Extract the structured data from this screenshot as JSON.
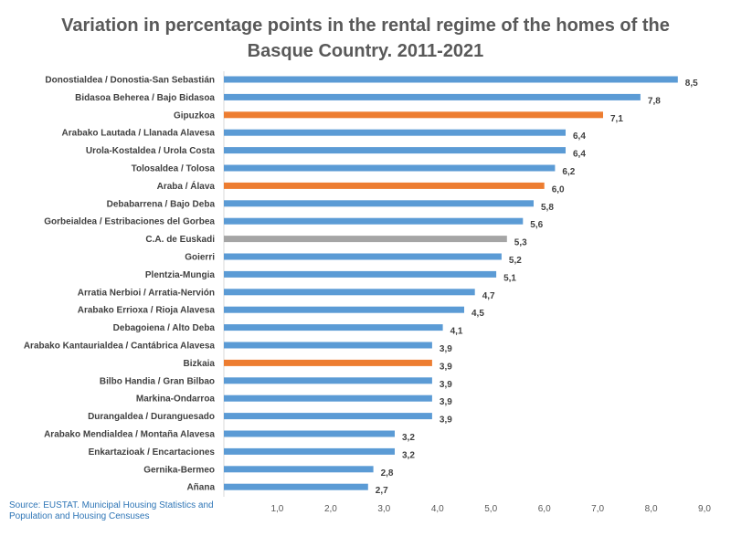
{
  "chart_data": {
    "type": "bar",
    "orientation": "horizontal",
    "title": "Variation in percentage points in the rental regime of the homes of the Basque Country. 2011-2021",
    "categories": [
      "Donostialdea / Donostia-San Sebastián",
      "Bidasoa Beherea / Bajo Bidasoa",
      "Gipuzkoa",
      "Arabako Lautada / Llanada Alavesa",
      "Urola-Kostaldea / Urola Costa",
      "Tolosaldea / Tolosa",
      "Araba / Álava",
      "Debabarrena / Bajo Deba",
      "Gorbeialdea / Estribaciones del Gorbea",
      "C.A. de Euskadi",
      "Goierri",
      "Plentzia-Mungia",
      "Arratia Nerbioi / Arratia-Nervión",
      "Arabako Errioxa / Rioja Alavesa",
      "Debagoiena / Alto Deba",
      "Arabako Kantaurialdea / Cantábrica Alavesa",
      "Bizkaia",
      "Bilbo Handia / Gran Bilbao",
      "Markina-Ondarroa",
      "Durangaldea / Duranguesado",
      "Arabako Mendialdea / Montaña Alavesa",
      "Enkartazioak / Encartaciones",
      "Gernika-Bermeo",
      "Añana"
    ],
    "values": [
      8.5,
      7.8,
      7.1,
      6.4,
      6.4,
      6.2,
      6.0,
      5.8,
      5.6,
      5.3,
      5.2,
      5.1,
      4.7,
      4.5,
      4.1,
      3.9,
      3.9,
      3.9,
      3.9,
      3.9,
      3.2,
      3.2,
      2.8,
      2.7
    ],
    "value_labels": [
      "8,5",
      "7,8",
      "7,1",
      "6,4",
      "6,4",
      "6,2",
      "6,0",
      "5,8",
      "5,6",
      "5,3",
      "5,2",
      "5,1",
      "4,7",
      "4,5",
      "4,1",
      "3,9",
      "3,9",
      "3,9",
      "3,9",
      "3,9",
      "3,2",
      "3,2",
      "2,8",
      "2,7"
    ],
    "bar_kind": [
      "comarca",
      "comarca",
      "province",
      "comarca",
      "comarca",
      "comarca",
      "province",
      "comarca",
      "comarca",
      "total",
      "comarca",
      "comarca",
      "comarca",
      "comarca",
      "comarca",
      "comarca",
      "province",
      "comarca",
      "comarca",
      "comarca",
      "comarca",
      "comarca",
      "comarca",
      "comarca"
    ],
    "colors": {
      "comarca": "#5b9bd5",
      "province": "#ed7d31",
      "total": "#a5a5a5"
    },
    "xlim": [
      0,
      9
    ],
    "x_ticks": [
      1,
      2,
      3,
      4,
      5,
      6,
      7,
      8,
      9
    ],
    "x_tick_labels": [
      "1,0",
      "2,0",
      "3,0",
      "4,0",
      "5,0",
      "6,0",
      "7,0",
      "8,0",
      "9,0"
    ],
    "grid": false,
    "xlabel": "",
    "ylabel": ""
  },
  "source": "Source: EUSTAT. Municipal Housing Statistics and Population and Housing Censuses"
}
